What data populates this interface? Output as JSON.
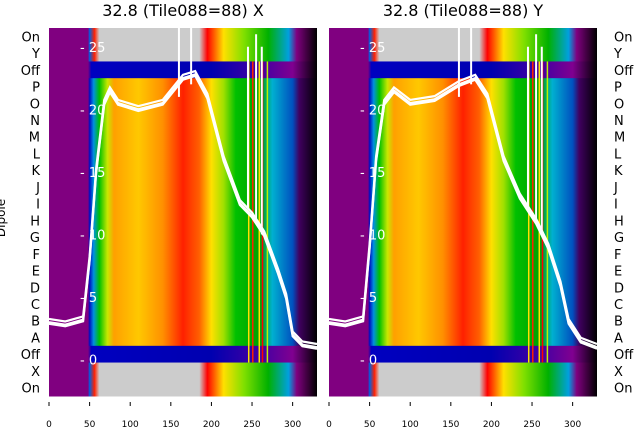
{
  "chart_data": [
    {
      "type": "heatmap",
      "title": "32.8 (Tile088=88) X",
      "ylabel": "Dipole",
      "side": "left",
      "rows": [
        "On",
        "Y",
        "Off",
        "P",
        "O",
        "N",
        "M",
        "L",
        "K",
        "J",
        "I",
        "H",
        "G",
        "F",
        "E",
        "D",
        "C",
        "B",
        "A",
        "Off",
        "X",
        "On"
      ],
      "xticks": [
        0,
        50,
        100,
        150,
        200,
        250,
        300
      ],
      "xlim": [
        0,
        330
      ],
      "inner_yticks": [
        0,
        5,
        10,
        15,
        20,
        25
      ],
      "inner_ylim": [
        -2.9,
        26.5
      ],
      "line": [
        [
          0,
          3
        ],
        [
          20,
          2.8
        ],
        [
          42,
          3.2
        ],
        [
          50,
          8
        ],
        [
          58,
          15
        ],
        [
          68,
          20.5
        ],
        [
          75,
          21.5
        ],
        [
          85,
          20.5
        ],
        [
          110,
          20
        ],
        [
          140,
          20.5
        ],
        [
          165,
          22.5
        ],
        [
          180,
          22.8
        ],
        [
          195,
          21
        ],
        [
          215,
          16
        ],
        [
          235,
          12.5
        ],
        [
          250,
          11.5
        ],
        [
          265,
          10
        ],
        [
          282,
          7
        ],
        [
          292,
          5
        ],
        [
          300,
          2
        ],
        [
          312,
          1.2
        ],
        [
          330,
          1
        ]
      ]
    },
    {
      "type": "heatmap",
      "title": "32.8 (Tile088=88) Y",
      "side": "right",
      "rows": [
        "On",
        "Y",
        "Off",
        "P",
        "O",
        "N",
        "M",
        "L",
        "K",
        "J",
        "I",
        "H",
        "G",
        "F",
        "E",
        "D",
        "C",
        "B",
        "A",
        "Off",
        "X",
        "On"
      ],
      "xticks": [
        0,
        50,
        100,
        150,
        200,
        250,
        300
      ],
      "xlim": [
        0,
        330
      ],
      "inner_yticks": [
        0,
        5,
        10,
        15,
        20,
        25
      ],
      "inner_ylim": [
        -2.9,
        26.5
      ],
      "line": [
        [
          0,
          3
        ],
        [
          20,
          2.8
        ],
        [
          42,
          3.2
        ],
        [
          50,
          9
        ],
        [
          58,
          16
        ],
        [
          68,
          20.5
        ],
        [
          80,
          21.5
        ],
        [
          100,
          20.5
        ],
        [
          130,
          20.8
        ],
        [
          160,
          22
        ],
        [
          180,
          22.5
        ],
        [
          195,
          21
        ],
        [
          215,
          16
        ],
        [
          235,
          13
        ],
        [
          255,
          11
        ],
        [
          270,
          9
        ],
        [
          285,
          6
        ],
        [
          295,
          3
        ],
        [
          310,
          1.5
        ],
        [
          330,
          1
        ]
      ]
    }
  ],
  "profiles": {
    "main": [
      [
        0,
        "#800080"
      ],
      [
        48,
        "#800080"
      ],
      [
        50,
        "#0010c0"
      ],
      [
        55,
        "#0090e0"
      ],
      [
        62,
        "#00c000"
      ],
      [
        72,
        "#c8e800"
      ],
      [
        80,
        "#ffa000"
      ],
      [
        110,
        "#ffc800"
      ],
      [
        140,
        "#ff9000"
      ],
      [
        165,
        "#ff2000"
      ],
      [
        185,
        "#ff6000"
      ],
      [
        200,
        "#ffe000"
      ],
      [
        215,
        "#a0e000"
      ],
      [
        230,
        "#00c000"
      ],
      [
        260,
        "#00a000"
      ],
      [
        275,
        "#00b0d0"
      ],
      [
        300,
        "#0050c0"
      ],
      [
        308,
        "#400060"
      ],
      [
        330,
        "#000000"
      ]
    ],
    "off": [
      [
        0,
        "#800080"
      ],
      [
        48,
        "#800080"
      ],
      [
        52,
        "#0000c0"
      ],
      [
        200,
        "#0000b0"
      ],
      [
        270,
        "#5000a0"
      ],
      [
        300,
        "#800090"
      ],
      [
        330,
        "#000000"
      ]
    ],
    "edge": [
      [
        0,
        "#800080"
      ],
      [
        48,
        "#800080"
      ],
      [
        50,
        "#0060e0"
      ],
      [
        56,
        "#ff2000"
      ],
      [
        62,
        "#cccccc"
      ],
      [
        185,
        "#cccccc"
      ],
      [
        195,
        "#ff0000"
      ],
      [
        215,
        "#ffe000"
      ],
      [
        240,
        "#80e000"
      ],
      [
        270,
        "#00b000"
      ],
      [
        295,
        "#00a0e0"
      ],
      [
        305,
        "#800080"
      ],
      [
        330,
        "#000000"
      ]
    ]
  },
  "colors": {
    "line": "#ffffff",
    "text": "#000000"
  }
}
